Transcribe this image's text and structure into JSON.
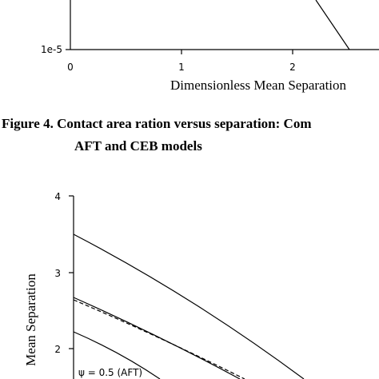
{
  "figure_top": {
    "y_tick": "1e-5",
    "x_ticks": [
      "0",
      "1",
      "2"
    ],
    "x_label": "Dimensionless Mean Separation"
  },
  "caption": {
    "line1": "Figure 4.  Contact area ration versus separation:  Com",
    "line2": "AFT and CEB models"
  },
  "figure_bottom": {
    "y_ticks": [
      "4",
      "3",
      "2"
    ],
    "y_label": "Mean Separation",
    "legend": "ψ = 0.5 (AFT)"
  }
}
